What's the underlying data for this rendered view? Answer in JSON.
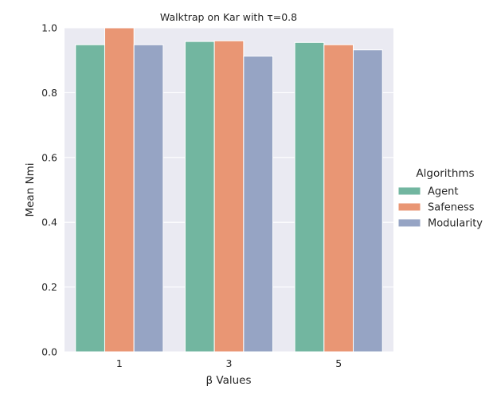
{
  "chart_data": {
    "type": "bar",
    "title": "Walktrap on Kar with τ=0.8",
    "xlabel": "β Values",
    "ylabel": "Mean Nmi",
    "categories": [
      "1",
      "3",
      "5"
    ],
    "ylim": [
      0,
      1.0
    ],
    "yticks": [
      "0.0",
      "0.2",
      "0.4",
      "0.6",
      "0.8",
      "1.0"
    ],
    "grid": true,
    "legend_title": "Algorithms",
    "legend_position": "right",
    "series": [
      {
        "name": "Agent",
        "color": "#72b6a0",
        "values": [
          0.948,
          0.958,
          0.955
        ]
      },
      {
        "name": "Safeness",
        "color": "#e99674",
        "values": [
          1.0,
          0.96,
          0.948
        ]
      },
      {
        "name": "Modularity",
        "color": "#96a4c4",
        "values": [
          0.948,
          0.913,
          0.932
        ]
      }
    ]
  }
}
